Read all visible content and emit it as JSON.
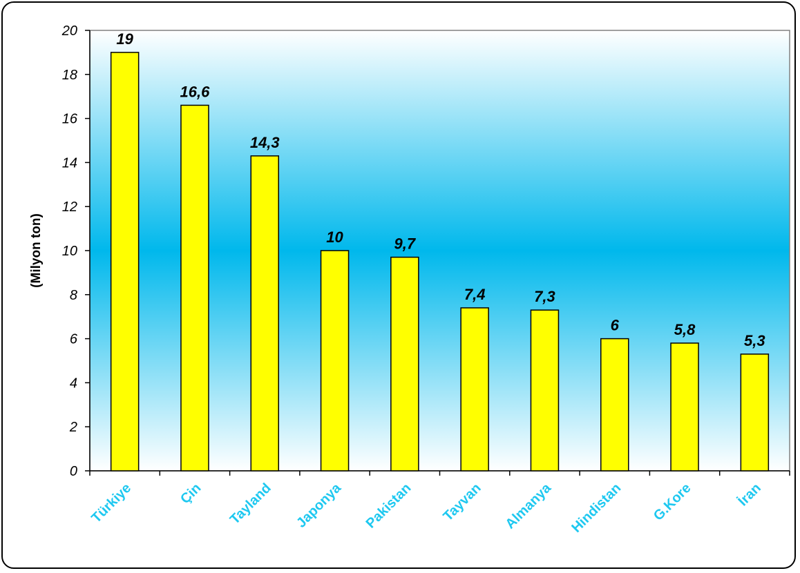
{
  "chart_data": {
    "type": "bar",
    "title": "",
    "xlabel": "",
    "ylabel": "(Milyon ton)",
    "categories": [
      "Türkiye",
      "Çin",
      "Tayland",
      "Japonya",
      "Pakistan",
      "Tayvan",
      "Almanya",
      "Hindistan",
      "G.Kore",
      "İran"
    ],
    "values": [
      19,
      16.6,
      14.3,
      10,
      9.7,
      7.4,
      7.3,
      6,
      5.8,
      5.3
    ],
    "value_labels": [
      "19",
      "16,6",
      "14,3",
      "10",
      "9,7",
      "7,4",
      "7,3",
      "6",
      "5,8",
      "5,3"
    ],
    "ylim": [
      0,
      20
    ],
    "yticks": [
      0,
      2,
      4,
      6,
      8,
      10,
      12,
      14,
      16,
      18,
      20
    ],
    "grid": false,
    "legend": "none",
    "colors": {
      "bar_fill": "#ffff00",
      "bar_stroke": "#000000",
      "category_label": "#1ec8f0",
      "plot_bg_edge": "#ffffff",
      "plot_bg_center": "#00b8ec"
    }
  }
}
